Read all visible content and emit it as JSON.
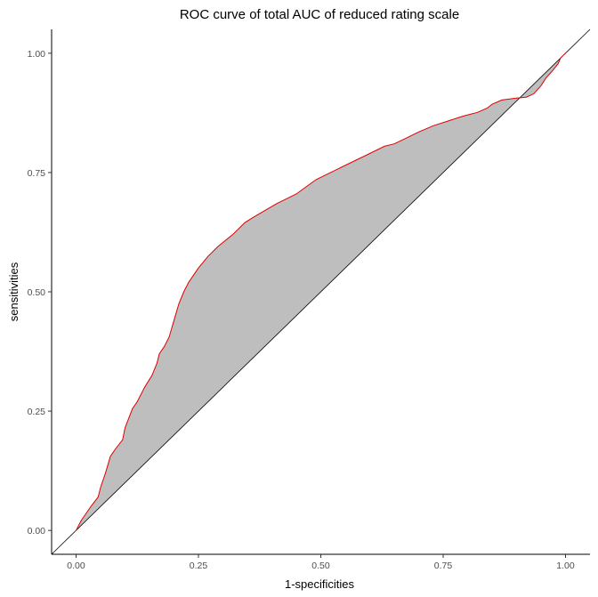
{
  "chart_data": {
    "type": "area",
    "title": "ROC curve of total AUC of reduced rating scale",
    "xlabel": "1-specificities",
    "ylabel": "sensitivities",
    "xlim": [
      -0.05,
      1.05
    ],
    "ylim": [
      -0.05,
      1.05
    ],
    "grid": false,
    "legend": "none",
    "x_ticks": [
      0.0,
      0.25,
      0.5,
      0.75,
      1.0
    ],
    "x_tick_labels": [
      "0.00",
      "0.25",
      "0.50",
      "0.75",
      "1.00"
    ],
    "y_ticks": [
      0.0,
      0.25,
      0.5,
      0.75,
      1.0
    ],
    "y_tick_labels": [
      "0.00",
      "0.25",
      "0.50",
      "0.75",
      "1.00"
    ],
    "colors": {
      "curve": "#e00000",
      "fill": "#bebebe",
      "diagonal": "#000000",
      "axis": "#000000"
    },
    "series": [
      {
        "x": [
          0.0,
          0.01,
          0.03,
          0.045,
          0.05,
          0.06,
          0.07,
          0.08,
          0.095,
          0.1,
          0.115,
          0.125,
          0.14,
          0.155,
          0.165,
          0.17,
          0.18,
          0.19,
          0.2,
          0.21,
          0.22,
          0.23,
          0.25,
          0.27,
          0.29,
          0.32,
          0.345,
          0.36,
          0.385,
          0.41,
          0.43,
          0.45,
          0.47,
          0.49,
          0.51,
          0.52,
          0.54,
          0.57,
          0.6,
          0.63,
          0.65,
          0.67,
          0.7,
          0.73,
          0.76,
          0.79,
          0.82,
          0.84,
          0.85,
          0.87,
          0.9,
          0.92,
          0.935,
          0.95,
          0.96,
          0.975,
          0.985,
          0.99,
          1.0
        ],
        "y": [
          0.0,
          0.02,
          0.05,
          0.07,
          0.09,
          0.12,
          0.155,
          0.17,
          0.19,
          0.215,
          0.255,
          0.27,
          0.3,
          0.325,
          0.35,
          0.37,
          0.385,
          0.405,
          0.44,
          0.475,
          0.5,
          0.52,
          0.55,
          0.575,
          0.595,
          0.62,
          0.645,
          0.655,
          0.67,
          0.685,
          0.695,
          0.705,
          0.72,
          0.735,
          0.745,
          0.75,
          0.76,
          0.775,
          0.79,
          0.805,
          0.81,
          0.82,
          0.835,
          0.848,
          0.858,
          0.868,
          0.876,
          0.885,
          0.893,
          0.902,
          0.906,
          0.908,
          0.915,
          0.932,
          0.948,
          0.965,
          0.978,
          0.99,
          1.0
        ]
      }
    ]
  }
}
